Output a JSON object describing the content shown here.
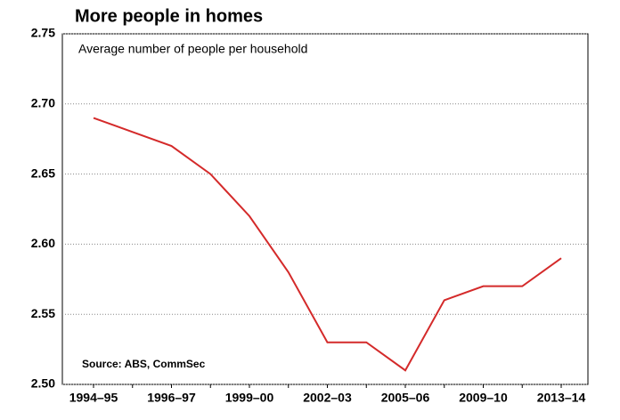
{
  "chart_data": {
    "type": "line",
    "title": "More people in homes",
    "subtitle": "Average number of people per household",
    "annotations": [
      "Source: ABS, CommSec"
    ],
    "categories": [
      "1994–95",
      null,
      "1996–97",
      null,
      "1999–00",
      null,
      "2002–03",
      null,
      "2005–06",
      null,
      "2009–10",
      null,
      "2013–14"
    ],
    "series": [
      {
        "name": "Average number of people per household",
        "color": "#d42a2a",
        "values": [
          2.69,
          2.68,
          2.67,
          2.65,
          2.62,
          2.58,
          2.53,
          2.53,
          2.51,
          2.56,
          2.57,
          2.57,
          2.59
        ]
      }
    ],
    "ylim": [
      2.5,
      2.75
    ],
    "yticks": [
      {
        "value": 2.5,
        "label": "2.50"
      },
      2.55,
      {
        "value": 2.6,
        "label": "2.60"
      },
      2.65,
      {
        "value": 2.7,
        "label": "2.70"
      },
      2.75
    ],
    "grid": true,
    "legend": false
  }
}
